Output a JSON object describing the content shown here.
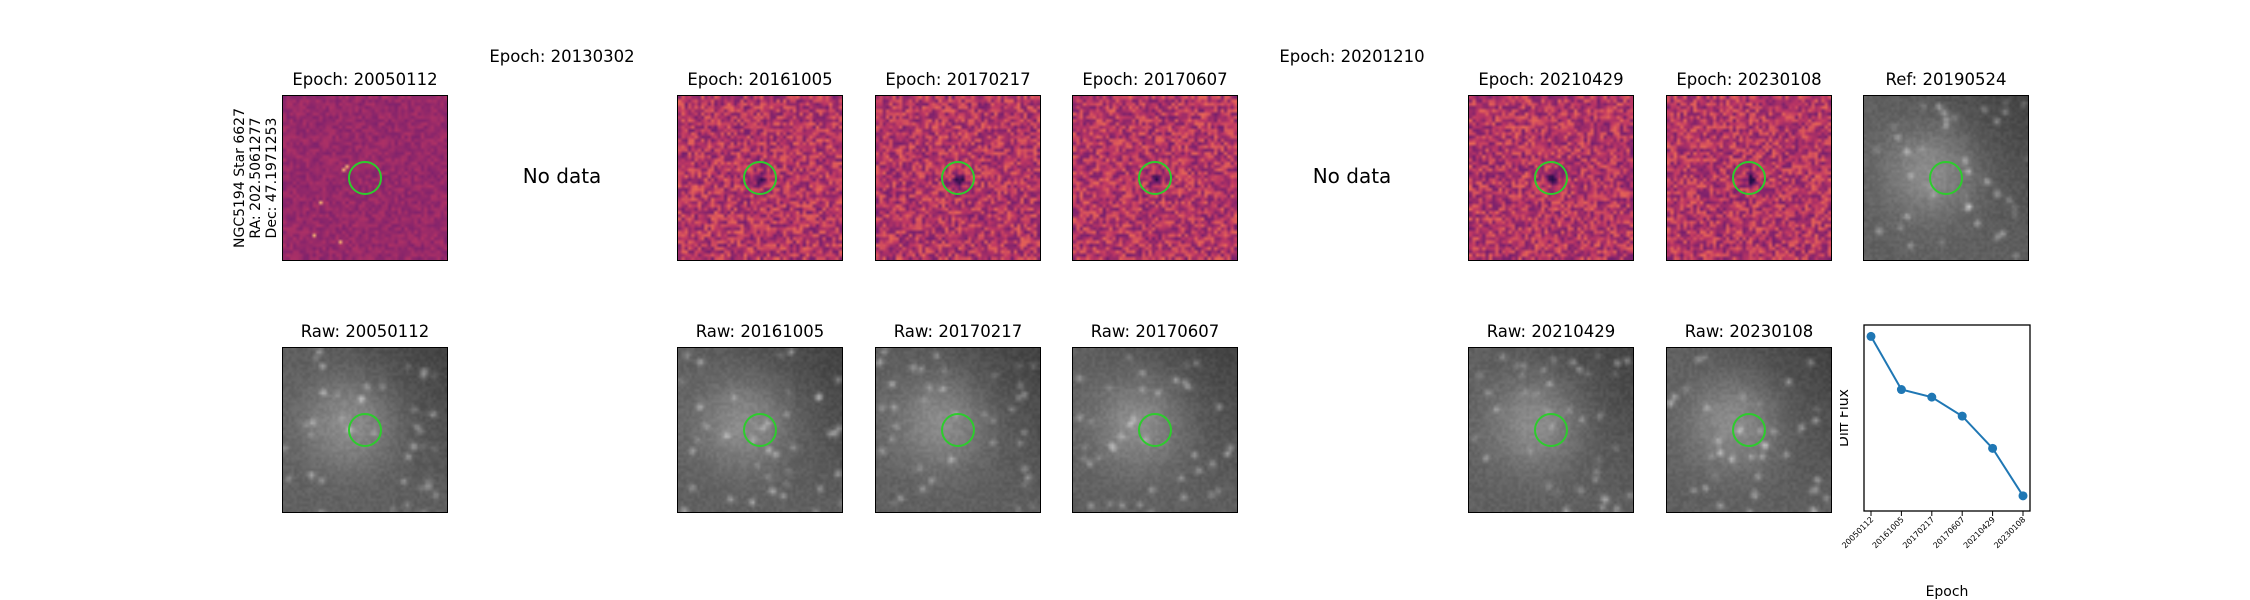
{
  "object": {
    "name": "NGC5194 Star 6627",
    "ra": "RA: 202.5061277",
    "dec": "Dec: 47.1971253"
  },
  "top_row": [
    {
      "title": "Epoch: 20050112",
      "kind": "diff"
    },
    {
      "title": "Epoch: 20130302",
      "kind": "nodata",
      "message": "No data"
    },
    {
      "title": "Epoch: 20161005",
      "kind": "diff"
    },
    {
      "title": "Epoch: 20170217",
      "kind": "diff"
    },
    {
      "title": "Epoch: 20170607",
      "kind": "diff"
    },
    {
      "title": "Epoch: 20201210",
      "kind": "nodata",
      "message": "No data"
    },
    {
      "title": "Epoch: 20210429",
      "kind": "diff"
    },
    {
      "title": "Epoch: 20230108",
      "kind": "diff"
    },
    {
      "title": "Ref: 20190524",
      "kind": "raw"
    }
  ],
  "bottom_row": [
    {
      "title": "Raw: 20050112",
      "kind": "raw"
    },
    {
      "title": "Raw: 20161005",
      "kind": "raw"
    },
    {
      "title": "Raw: 20170217",
      "kind": "raw"
    },
    {
      "title": "Raw: 20170607",
      "kind": "raw"
    },
    {
      "title": "Raw: 20210429",
      "kind": "raw"
    },
    {
      "title": "Raw: 20230108",
      "kind": "raw"
    }
  ],
  "colors": {
    "circle": "#2dcc2d",
    "line": "#1f77b4"
  },
  "chart_data": {
    "type": "line",
    "title": "",
    "xlabel": "Epoch",
    "ylabel": "Diff Flux",
    "categories": [
      "20050112",
      "20161005",
      "20170217",
      "20170607",
      "20210429",
      "20230108"
    ],
    "values": [
      1.0,
      0.72,
      0.68,
      0.58,
      0.41,
      0.16
    ],
    "ylim": [
      0.08,
      1.06
    ],
    "yticks": "hidden",
    "grid": false
  }
}
